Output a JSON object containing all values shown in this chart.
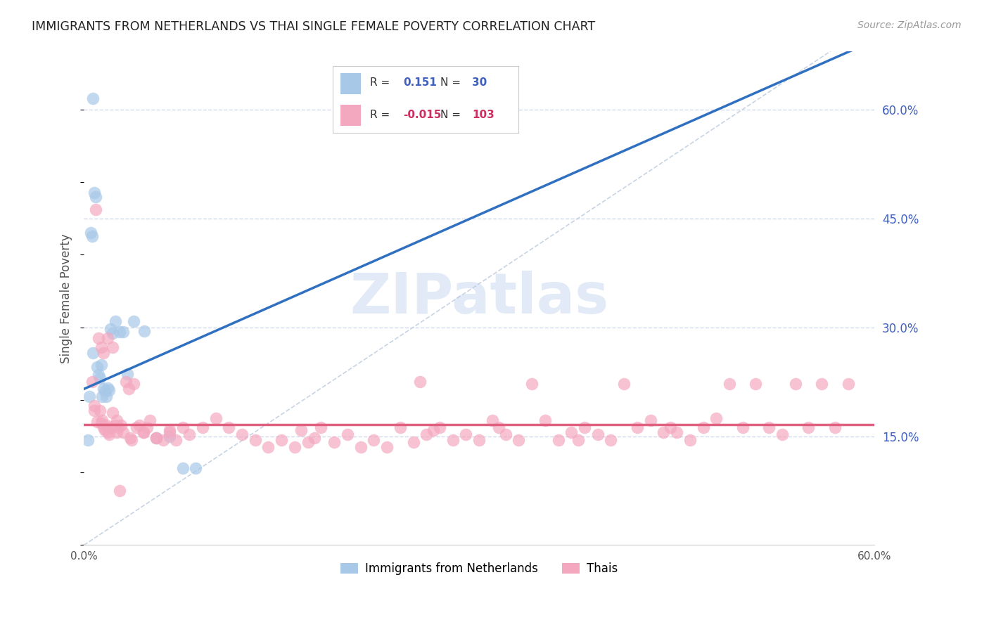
{
  "title": "IMMIGRANTS FROM NETHERLANDS VS THAI SINGLE FEMALE POVERTY CORRELATION CHART",
  "source": "Source: ZipAtlas.com",
  "ylabel": "Single Female Poverty",
  "legend_label1": "Immigrants from Netherlands",
  "legend_label2": "Thais",
  "R1_text": "0.151",
  "N1_text": "30",
  "R2_text": "-0.015",
  "N2_text": "103",
  "color1": "#a8c8e8",
  "color2": "#f4a8c0",
  "trend1_color": "#3070c0",
  "trend2_color": "#e06080",
  "diag_color": "#c8d4e4",
  "grid_color": "#d0daea",
  "xlim": [
    0.0,
    0.6
  ],
  "ylim": [
    0.0,
    0.68
  ],
  "yticks": [
    0.15,
    0.3,
    0.45,
    0.6
  ],
  "ytick_labels": [
    "15.0%",
    "30.0%",
    "45.0%",
    "60.0%"
  ],
  "background_color": "#ffffff",
  "watermark": "ZIPatlas",
  "ax_tick_color": "#4060c0",
  "title_color": "#222222",
  "source_color": "#999999",
  "blue_x": [
    0.004,
    0.007,
    0.007,
    0.008,
    0.009,
    0.01,
    0.011,
    0.012,
    0.013,
    0.014,
    0.015,
    0.016,
    0.017,
    0.018,
    0.019,
    0.02,
    0.022,
    0.024,
    0.027,
    0.03,
    0.033,
    0.038,
    0.046,
    0.055,
    0.065,
    0.075,
    0.085,
    0.005,
    0.006,
    0.003
  ],
  "blue_y": [
    0.205,
    0.615,
    0.265,
    0.485,
    0.48,
    0.245,
    0.235,
    0.23,
    0.248,
    0.205,
    0.215,
    0.212,
    0.205,
    0.216,
    0.213,
    0.298,
    0.292,
    0.308,
    0.294,
    0.294,
    0.236,
    0.308,
    0.295,
    0.148,
    0.15,
    0.106,
    0.106,
    0.43,
    0.425,
    0.145
  ],
  "pink_x": [
    0.006,
    0.008,
    0.01,
    0.012,
    0.013,
    0.014,
    0.015,
    0.016,
    0.017,
    0.018,
    0.019,
    0.02,
    0.022,
    0.024,
    0.025,
    0.026,
    0.028,
    0.03,
    0.032,
    0.034,
    0.036,
    0.038,
    0.04,
    0.042,
    0.045,
    0.048,
    0.05,
    0.055,
    0.06,
    0.065,
    0.07,
    0.075,
    0.08,
    0.09,
    0.1,
    0.11,
    0.12,
    0.13,
    0.14,
    0.15,
    0.16,
    0.165,
    0.17,
    0.175,
    0.18,
    0.19,
    0.2,
    0.21,
    0.22,
    0.23,
    0.24,
    0.25,
    0.255,
    0.26,
    0.265,
    0.27,
    0.28,
    0.29,
    0.3,
    0.31,
    0.315,
    0.32,
    0.33,
    0.34,
    0.35,
    0.36,
    0.37,
    0.375,
    0.38,
    0.39,
    0.4,
    0.41,
    0.42,
    0.43,
    0.44,
    0.445,
    0.45,
    0.46,
    0.47,
    0.48,
    0.49,
    0.5,
    0.51,
    0.52,
    0.53,
    0.54,
    0.55,
    0.56,
    0.57,
    0.58,
    0.025,
    0.035,
    0.045,
    0.055,
    0.065,
    0.008,
    0.009,
    0.011,
    0.013,
    0.015,
    0.018,
    0.022,
    0.027
  ],
  "pink_y": [
    0.225,
    0.185,
    0.17,
    0.185,
    0.168,
    0.172,
    0.162,
    0.158,
    0.165,
    0.155,
    0.152,
    0.162,
    0.182,
    0.165,
    0.172,
    0.162,
    0.165,
    0.155,
    0.225,
    0.215,
    0.145,
    0.222,
    0.162,
    0.165,
    0.155,
    0.162,
    0.172,
    0.148,
    0.145,
    0.155,
    0.145,
    0.162,
    0.152,
    0.162,
    0.175,
    0.162,
    0.152,
    0.145,
    0.135,
    0.145,
    0.135,
    0.158,
    0.142,
    0.148,
    0.162,
    0.142,
    0.152,
    0.135,
    0.145,
    0.135,
    0.162,
    0.142,
    0.225,
    0.152,
    0.158,
    0.162,
    0.145,
    0.152,
    0.145,
    0.172,
    0.162,
    0.152,
    0.145,
    0.222,
    0.172,
    0.145,
    0.155,
    0.145,
    0.162,
    0.152,
    0.145,
    0.222,
    0.162,
    0.172,
    0.155,
    0.162,
    0.155,
    0.145,
    0.162,
    0.175,
    0.222,
    0.162,
    0.222,
    0.162,
    0.152,
    0.222,
    0.162,
    0.222,
    0.162,
    0.222,
    0.155,
    0.148,
    0.155,
    0.148,
    0.158,
    0.192,
    0.462,
    0.285,
    0.272,
    0.265,
    0.285,
    0.272,
    0.075
  ]
}
